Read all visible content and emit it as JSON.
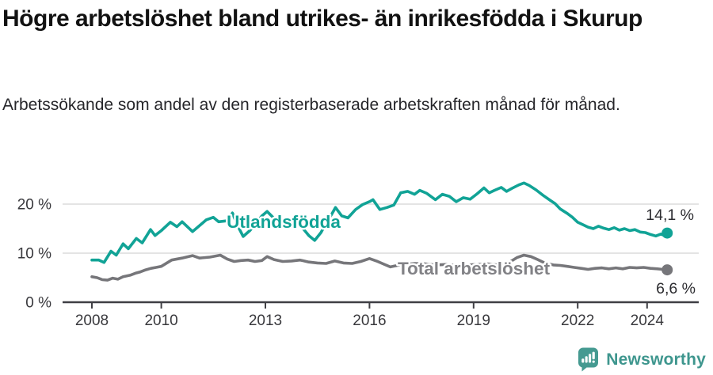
{
  "header": {
    "title": "Högre arbetslöshet bland utrikes- än inrikesfödda i Skurup",
    "subtitle": "Arbetssökande som andel av den registerbaserade arbetskraften månad för månad."
  },
  "chart_data": {
    "type": "line",
    "title": "Högre arbetslöshet bland utrikes- än inrikesfödda i Skurup",
    "xlabel": "",
    "ylabel": "",
    "unit": "%",
    "grid": "horizontal",
    "legend_position": "inline-labels",
    "x_axis": {
      "range": [
        2007.15,
        2025.5
      ],
      "ticks": [
        {
          "label": "2008",
          "year": 2008
        },
        {
          "label": "2010",
          "year": 2010
        },
        {
          "label": "2013",
          "year": 2013
        },
        {
          "label": "2016",
          "year": 2016
        },
        {
          "label": "2019",
          "year": 2019
        },
        {
          "label": "2022",
          "year": 2022
        },
        {
          "label": "2024",
          "year": 2024
        }
      ]
    },
    "y_axis": {
      "range": [
        0,
        26
      ],
      "ticks": [
        {
          "label": "0 %",
          "value": 0
        },
        {
          "label": "10 %",
          "value": 10
        },
        {
          "label": "20 %",
          "value": 20
        }
      ]
    },
    "colors": {
      "grid": "#dbdbdb",
      "axis": "#3f3f44",
      "axis_text": "#39393d",
      "value_text": "#2c2c30",
      "accent_teal": "#11a396",
      "neutral_gray": "#76767a"
    },
    "series": [
      {
        "id": "utlandsfodda",
        "name": "Utlandsfödda",
        "color": "#11a396",
        "label_color": "#11a396",
        "end_label": "14,1 %",
        "end_value": 14.1,
        "points": [
          [
            2008.0,
            8.6
          ],
          [
            2008.2,
            8.6
          ],
          [
            2008.35,
            8.1
          ],
          [
            2008.55,
            10.4
          ],
          [
            2008.7,
            9.6
          ],
          [
            2008.9,
            11.9
          ],
          [
            2009.05,
            10.9
          ],
          [
            2009.28,
            13.0
          ],
          [
            2009.45,
            12.1
          ],
          [
            2009.69,
            14.8
          ],
          [
            2009.82,
            13.6
          ],
          [
            2010.0,
            14.6
          ],
          [
            2010.26,
            16.3
          ],
          [
            2010.45,
            15.4
          ],
          [
            2010.6,
            16.4
          ],
          [
            2010.9,
            14.4
          ],
          [
            2011.1,
            15.6
          ],
          [
            2011.3,
            16.8
          ],
          [
            2011.5,
            17.3
          ],
          [
            2011.65,
            16.4
          ],
          [
            2011.9,
            16.6
          ],
          [
            2012.05,
            18.2
          ],
          [
            2012.2,
            15.6
          ],
          [
            2012.36,
            13.4
          ],
          [
            2012.55,
            14.6
          ],
          [
            2012.75,
            16.2
          ],
          [
            2012.9,
            17.6
          ],
          [
            2013.05,
            18.5
          ],
          [
            2013.25,
            17.1
          ],
          [
            2013.45,
            16.1
          ],
          [
            2013.65,
            16.6
          ],
          [
            2013.85,
            16.9
          ],
          [
            2014.05,
            15.3
          ],
          [
            2014.25,
            13.6
          ],
          [
            2014.42,
            12.6
          ],
          [
            2014.6,
            14.2
          ],
          [
            2014.75,
            16.1
          ],
          [
            2014.9,
            17.8
          ],
          [
            2015.02,
            19.3
          ],
          [
            2015.2,
            17.6
          ],
          [
            2015.38,
            17.2
          ],
          [
            2015.6,
            18.9
          ],
          [
            2015.8,
            19.9
          ],
          [
            2016.0,
            20.5
          ],
          [
            2016.1,
            20.9
          ],
          [
            2016.3,
            18.9
          ],
          [
            2016.5,
            19.3
          ],
          [
            2016.7,
            19.8
          ],
          [
            2016.9,
            22.3
          ],
          [
            2017.1,
            22.6
          ],
          [
            2017.3,
            22.0
          ],
          [
            2017.45,
            22.8
          ],
          [
            2017.65,
            22.2
          ],
          [
            2017.9,
            20.9
          ],
          [
            2018.1,
            22.0
          ],
          [
            2018.3,
            21.6
          ],
          [
            2018.5,
            20.5
          ],
          [
            2018.7,
            21.3
          ],
          [
            2018.9,
            21.0
          ],
          [
            2019.1,
            22.1
          ],
          [
            2019.3,
            23.3
          ],
          [
            2019.45,
            22.3
          ],
          [
            2019.6,
            22.8
          ],
          [
            2019.8,
            23.4
          ],
          [
            2019.95,
            22.6
          ],
          [
            2020.1,
            23.2
          ],
          [
            2020.3,
            23.9
          ],
          [
            2020.45,
            24.3
          ],
          [
            2020.6,
            23.8
          ],
          [
            2020.8,
            22.9
          ],
          [
            2021.0,
            21.8
          ],
          [
            2021.2,
            20.8
          ],
          [
            2021.35,
            20.1
          ],
          [
            2021.5,
            19.0
          ],
          [
            2021.7,
            18.1
          ],
          [
            2021.85,
            17.3
          ],
          [
            2022.0,
            16.3
          ],
          [
            2022.15,
            15.8
          ],
          [
            2022.3,
            15.3
          ],
          [
            2022.45,
            15.0
          ],
          [
            2022.6,
            15.5
          ],
          [
            2022.75,
            15.1
          ],
          [
            2022.9,
            14.8
          ],
          [
            2023.05,
            15.2
          ],
          [
            2023.2,
            14.7
          ],
          [
            2023.35,
            15.0
          ],
          [
            2023.5,
            14.6
          ],
          [
            2023.65,
            14.8
          ],
          [
            2023.8,
            14.3
          ],
          [
            2023.95,
            14.2
          ],
          [
            2024.1,
            13.8
          ],
          [
            2024.25,
            13.5
          ],
          [
            2024.4,
            13.9
          ],
          [
            2024.5,
            13.6
          ],
          [
            2024.58,
            14.1
          ]
        ]
      },
      {
        "id": "total",
        "name": "Total arbetslöshet",
        "color": "#76767a",
        "label_color": "#828286",
        "end_label": "6,6 %",
        "end_value": 6.6,
        "points": [
          [
            2008.0,
            5.2
          ],
          [
            2008.15,
            5.0
          ],
          [
            2008.3,
            4.6
          ],
          [
            2008.45,
            4.5
          ],
          [
            2008.6,
            4.9
          ],
          [
            2008.75,
            4.7
          ],
          [
            2008.9,
            5.2
          ],
          [
            2009.1,
            5.5
          ],
          [
            2009.25,
            5.9
          ],
          [
            2009.4,
            6.2
          ],
          [
            2009.55,
            6.6
          ],
          [
            2009.7,
            6.9
          ],
          [
            2009.85,
            7.1
          ],
          [
            2010.0,
            7.3
          ],
          [
            2010.3,
            8.6
          ],
          [
            2010.6,
            9.0
          ],
          [
            2010.9,
            9.5
          ],
          [
            2011.1,
            9.0
          ],
          [
            2011.4,
            9.2
          ],
          [
            2011.7,
            9.6
          ],
          [
            2011.9,
            8.8
          ],
          [
            2012.1,
            8.3
          ],
          [
            2012.3,
            8.5
          ],
          [
            2012.5,
            8.6
          ],
          [
            2012.7,
            8.3
          ],
          [
            2012.9,
            8.5
          ],
          [
            2013.05,
            9.3
          ],
          [
            2013.25,
            8.7
          ],
          [
            2013.5,
            8.3
          ],
          [
            2013.75,
            8.4
          ],
          [
            2014.0,
            8.6
          ],
          [
            2014.25,
            8.2
          ],
          [
            2014.5,
            8.0
          ],
          [
            2014.75,
            7.9
          ],
          [
            2015.0,
            8.4
          ],
          [
            2015.25,
            8.0
          ],
          [
            2015.5,
            7.9
          ],
          [
            2015.75,
            8.3
          ],
          [
            2016.0,
            8.9
          ],
          [
            2016.2,
            8.4
          ],
          [
            2016.4,
            7.8
          ],
          [
            2016.6,
            7.2
          ],
          [
            2016.8,
            7.5
          ],
          [
            2017.0,
            7.7
          ],
          [
            2017.3,
            7.9
          ],
          [
            2017.6,
            7.8
          ],
          [
            2017.9,
            7.6
          ],
          [
            2018.2,
            7.7
          ],
          [
            2018.5,
            7.5
          ],
          [
            2018.8,
            7.6
          ],
          [
            2019.1,
            7.7
          ],
          [
            2019.4,
            7.8
          ],
          [
            2019.7,
            7.6
          ],
          [
            2020.0,
            8.0
          ],
          [
            2020.25,
            9.1
          ],
          [
            2020.45,
            9.6
          ],
          [
            2020.65,
            9.3
          ],
          [
            2020.85,
            8.7
          ],
          [
            2021.05,
            8.0
          ],
          [
            2021.3,
            7.6
          ],
          [
            2021.5,
            7.5
          ],
          [
            2021.7,
            7.3
          ],
          [
            2021.9,
            7.1
          ],
          [
            2022.1,
            6.9
          ],
          [
            2022.3,
            6.7
          ],
          [
            2022.5,
            6.9
          ],
          [
            2022.7,
            7.0
          ],
          [
            2022.9,
            6.8
          ],
          [
            2023.1,
            7.0
          ],
          [
            2023.3,
            6.8
          ],
          [
            2023.5,
            7.1
          ],
          [
            2023.7,
            7.0
          ],
          [
            2023.9,
            7.1
          ],
          [
            2024.1,
            6.9
          ],
          [
            2024.3,
            6.8
          ],
          [
            2024.45,
            6.7
          ],
          [
            2024.58,
            6.6
          ]
        ]
      }
    ]
  },
  "footer": {
    "brand": "Newsworthy"
  }
}
